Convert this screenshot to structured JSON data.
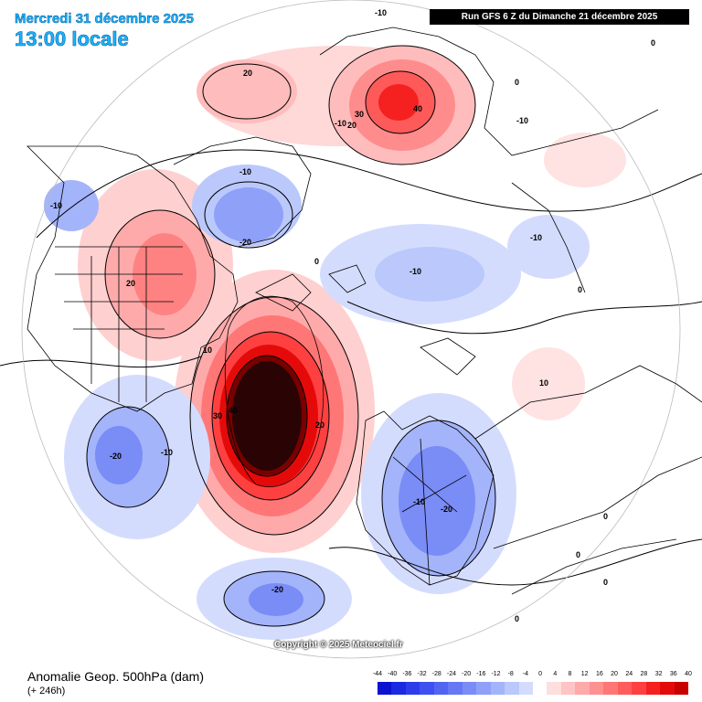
{
  "header": {
    "date": "Mercredi 31 décembre 2025",
    "time": "13:00 locale",
    "run": "Run GFS 6 Z du Dimanche 21 décembre 2025"
  },
  "copyright": "Copyright © 2025 Meteociel.fr",
  "legend": {
    "title": "Anomalie Geop. 500hPa (dam)",
    "subtitle": "(+ 246h)",
    "ticks": [
      "-44",
      "-40",
      "-36",
      "-32",
      "-28",
      "-24",
      "-20",
      "-16",
      "-12",
      "-8",
      "-4",
      "0",
      "4",
      "8",
      "12",
      "16",
      "20",
      "24",
      "28",
      "32",
      "36",
      "40"
    ],
    "colors": [
      "#0a14d0",
      "#1a2ae0",
      "#2c3cea",
      "#3e50f0",
      "#5264f2",
      "#6678f4",
      "#7a8cf6",
      "#8ea0f8",
      "#a4b4fa",
      "#bac8fc",
      "#d4dcfe",
      "#ffffff",
      "#ffdede",
      "#ffc4c4",
      "#ffaaaa",
      "#ff9090",
      "#ff7676",
      "#ff5c5c",
      "#ff4040",
      "#f52020",
      "#e50a0a",
      "#c80000"
    ]
  },
  "contour_labels": {
    "l1": "-10",
    "l2": "-10",
    "l3": "20",
    "l4": "30",
    "l5": "40",
    "l6": "-10",
    "l7": "20",
    "l8": "0",
    "l9": "-10",
    "l10": "-10",
    "l11": "-20",
    "l12": "20",
    "l13": "0",
    "l14": "-10",
    "l15": "-10",
    "l16": "10",
    "l17": "30",
    "l18": "40",
    "l19": "20",
    "l20": "-20",
    "l21": "-10",
    "l22": "-10",
    "l23": "-20",
    "l24": "-20",
    "l25": "10",
    "l26": "0",
    "l27": "0",
    "l28": "0",
    "l29": "0",
    "l30": "0",
    "l31": "0"
  }
}
